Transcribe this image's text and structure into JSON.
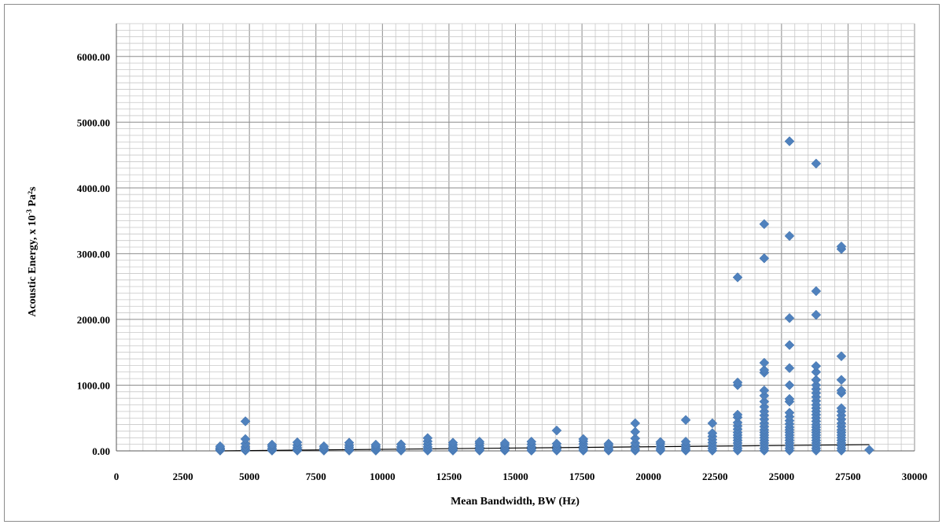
{
  "chart_data": {
    "type": "scatter",
    "title": "",
    "xlabel": "Mean Bandwidth, BW (Hz)",
    "ylabel": {
      "prefix": "Acoustic Energy, x 10",
      "exponent": "-3",
      "suffix": " Pa²s"
    },
    "xlim": [
      0,
      30000
    ],
    "ylim": [
      0,
      6500
    ],
    "x_ticks": [
      0,
      2500,
      5000,
      7500,
      10000,
      12500,
      15000,
      17500,
      20000,
      22500,
      25000,
      27500,
      30000
    ],
    "y_ticks": [
      "0.00",
      "1000.00",
      "2000.00",
      "3000.00",
      "4000.00",
      "5000.00",
      "6000.00"
    ],
    "y_tick_values": [
      0,
      1000,
      2000,
      3000,
      4000,
      5000,
      6000
    ],
    "grid": true,
    "marker_color": "#4f81bd",
    "trendline": {
      "x": [
        3900,
        28300
      ],
      "y": [
        0,
        95
      ],
      "color": "#000000"
    },
    "series": [
      {
        "points": [
          [
            3900,
            5
          ],
          [
            3900,
            15
          ],
          [
            3900,
            30
          ],
          [
            3900,
            45
          ],
          [
            3900,
            70
          ],
          [
            4850,
            5
          ],
          [
            4850,
            25
          ],
          [
            4850,
            60
          ],
          [
            4850,
            110
          ],
          [
            4850,
            180
          ],
          [
            4850,
            450
          ],
          [
            5850,
            5
          ],
          [
            5850,
            20
          ],
          [
            5850,
            40
          ],
          [
            5850,
            70
          ],
          [
            5850,
            95
          ],
          [
            6800,
            5
          ],
          [
            6800,
            25
          ],
          [
            6800,
            50
          ],
          [
            6800,
            85
          ],
          [
            6800,
            130
          ],
          [
            7800,
            5
          ],
          [
            7800,
            20
          ],
          [
            7800,
            40
          ],
          [
            7800,
            70
          ],
          [
            8750,
            5
          ],
          [
            8750,
            25
          ],
          [
            8750,
            55
          ],
          [
            8750,
            85
          ],
          [
            8750,
            125
          ],
          [
            9750,
            5
          ],
          [
            9750,
            20
          ],
          [
            9750,
            45
          ],
          [
            9750,
            70
          ],
          [
            9750,
            95
          ],
          [
            10700,
            5
          ],
          [
            10700,
            30
          ],
          [
            10700,
            60
          ],
          [
            10700,
            100
          ],
          [
            11700,
            5
          ],
          [
            11700,
            30
          ],
          [
            11700,
            60
          ],
          [
            11700,
            100
          ],
          [
            11700,
            145
          ],
          [
            11700,
            195
          ],
          [
            12650,
            5
          ],
          [
            12650,
            25
          ],
          [
            12650,
            55
          ],
          [
            12650,
            90
          ],
          [
            12650,
            125
          ],
          [
            13650,
            5
          ],
          [
            13650,
            25
          ],
          [
            13650,
            50
          ],
          [
            13650,
            80
          ],
          [
            13650,
            115
          ],
          [
            13650,
            140
          ],
          [
            14600,
            5
          ],
          [
            14600,
            25
          ],
          [
            14600,
            55
          ],
          [
            14600,
            90
          ],
          [
            14600,
            120
          ],
          [
            15600,
            5
          ],
          [
            15600,
            30
          ],
          [
            15600,
            60
          ],
          [
            15600,
            100
          ],
          [
            15600,
            140
          ],
          [
            16550,
            5
          ],
          [
            16550,
            30
          ],
          [
            16550,
            70
          ],
          [
            16550,
            110
          ],
          [
            16550,
            310
          ],
          [
            17550,
            5
          ],
          [
            17550,
            30
          ],
          [
            17550,
            65
          ],
          [
            17550,
            105
          ],
          [
            17550,
            145
          ],
          [
            17550,
            180
          ],
          [
            18500,
            5
          ],
          [
            18500,
            25
          ],
          [
            18500,
            50
          ],
          [
            18500,
            85
          ],
          [
            18500,
            110
          ],
          [
            19500,
            5
          ],
          [
            19500,
            30
          ],
          [
            19500,
            75
          ],
          [
            19500,
            120
          ],
          [
            19500,
            190
          ],
          [
            19500,
            290
          ],
          [
            19500,
            420
          ],
          [
            20450,
            5
          ],
          [
            20450,
            30
          ],
          [
            20450,
            65
          ],
          [
            20450,
            105
          ],
          [
            20450,
            135
          ],
          [
            21400,
            5
          ],
          [
            21400,
            30
          ],
          [
            21400,
            60
          ],
          [
            21400,
            95
          ],
          [
            21400,
            140
          ],
          [
            21400,
            470
          ],
          [
            22400,
            5
          ],
          [
            22400,
            40
          ],
          [
            22400,
            80
          ],
          [
            22400,
            125
          ],
          [
            22400,
            170
          ],
          [
            22400,
            220
          ],
          [
            22400,
            270
          ],
          [
            22400,
            420
          ],
          [
            23350,
            5
          ],
          [
            23350,
            40
          ],
          [
            23350,
            80
          ],
          [
            23350,
            120
          ],
          [
            23350,
            160
          ],
          [
            23350,
            200
          ],
          [
            23350,
            240
          ],
          [
            23350,
            280
          ],
          [
            23350,
            330
          ],
          [
            23350,
            380
          ],
          [
            23350,
            430
          ],
          [
            23350,
            510
          ],
          [
            23350,
            550
          ],
          [
            23350,
            1000
          ],
          [
            23350,
            1040
          ],
          [
            23350,
            2640
          ],
          [
            24350,
            5
          ],
          [
            24350,
            40
          ],
          [
            24350,
            80
          ],
          [
            24350,
            120
          ],
          [
            24350,
            160
          ],
          [
            24350,
            200
          ],
          [
            24350,
            240
          ],
          [
            24350,
            280
          ],
          [
            24350,
            320
          ],
          [
            24350,
            370
          ],
          [
            24350,
            420
          ],
          [
            24350,
            480
          ],
          [
            24350,
            540
          ],
          [
            24350,
            600
          ],
          [
            24350,
            670
          ],
          [
            24350,
            750
          ],
          [
            24350,
            840
          ],
          [
            24350,
            920
          ],
          [
            24350,
            1190
          ],
          [
            24350,
            1230
          ],
          [
            24350,
            1340
          ],
          [
            24350,
            2930
          ],
          [
            24350,
            3450
          ],
          [
            25300,
            5
          ],
          [
            25300,
            40
          ],
          [
            25300,
            80
          ],
          [
            25300,
            120
          ],
          [
            25300,
            160
          ],
          [
            25300,
            200
          ],
          [
            25300,
            240
          ],
          [
            25300,
            280
          ],
          [
            25300,
            320
          ],
          [
            25300,
            360
          ],
          [
            25300,
            410
          ],
          [
            25300,
            460
          ],
          [
            25300,
            520
          ],
          [
            25300,
            580
          ],
          [
            25300,
            750
          ],
          [
            25300,
            790
          ],
          [
            25300,
            1000
          ],
          [
            25300,
            1260
          ],
          [
            25300,
            1610
          ],
          [
            25300,
            2020
          ],
          [
            25300,
            3270
          ],
          [
            25300,
            4710
          ],
          [
            26300,
            5
          ],
          [
            26300,
            40
          ],
          [
            26300,
            80
          ],
          [
            26300,
            120
          ],
          [
            26300,
            160
          ],
          [
            26300,
            200
          ],
          [
            26300,
            240
          ],
          [
            26300,
            280
          ],
          [
            26300,
            320
          ],
          [
            26300,
            360
          ],
          [
            26300,
            400
          ],
          [
            26300,
            450
          ],
          [
            26300,
            500
          ],
          [
            26300,
            550
          ],
          [
            26300,
            600
          ],
          [
            26300,
            650
          ],
          [
            26300,
            700
          ],
          [
            26300,
            760
          ],
          [
            26300,
            820
          ],
          [
            26300,
            880
          ],
          [
            26300,
            940
          ],
          [
            26300,
            1000
          ],
          [
            26300,
            1080
          ],
          [
            26300,
            1200
          ],
          [
            26300,
            1290
          ],
          [
            26300,
            2070
          ],
          [
            26300,
            2430
          ],
          [
            26300,
            4370
          ],
          [
            27250,
            5
          ],
          [
            27250,
            40
          ],
          [
            27250,
            80
          ],
          [
            27250,
            120
          ],
          [
            27250,
            160
          ],
          [
            27250,
            200
          ],
          [
            27250,
            240
          ],
          [
            27250,
            280
          ],
          [
            27250,
            320
          ],
          [
            27250,
            370
          ],
          [
            27250,
            420
          ],
          [
            27250,
            480
          ],
          [
            27250,
            540
          ],
          [
            27250,
            600
          ],
          [
            27250,
            650
          ],
          [
            27250,
            880
          ],
          [
            27250,
            920
          ],
          [
            27250,
            1080
          ],
          [
            27250,
            1440
          ],
          [
            27250,
            3070
          ],
          [
            27250,
            3110
          ],
          [
            28300,
            15
          ]
        ]
      }
    ]
  }
}
